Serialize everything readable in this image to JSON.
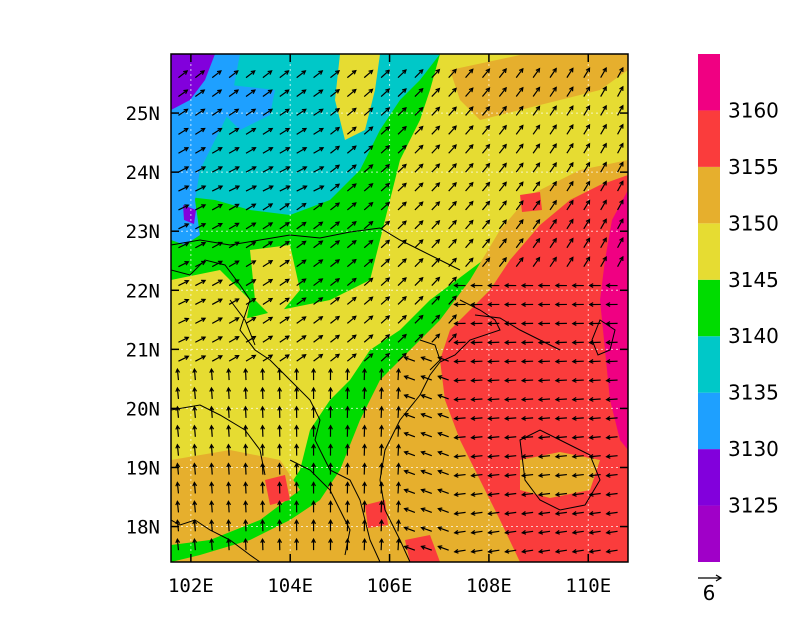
{
  "map": {
    "lon_range": [
      101.6,
      110.8
    ],
    "lat_range": [
      17.4,
      26.0
    ],
    "x_ticks": [
      {
        "value": 102,
        "label": "102E"
      },
      {
        "value": 104,
        "label": "104E"
      },
      {
        "value": 106,
        "label": "106E"
      },
      {
        "value": 108,
        "label": "108E"
      },
      {
        "value": 110,
        "label": "110E"
      }
    ],
    "y_ticks": [
      {
        "value": 18,
        "label": "18N"
      },
      {
        "value": 19,
        "label": "19N"
      },
      {
        "value": 20,
        "label": "20N"
      },
      {
        "value": 21,
        "label": "21N"
      },
      {
        "value": 22,
        "label": "22N"
      },
      {
        "value": 23,
        "label": "23N"
      },
      {
        "value": 24,
        "label": "24N"
      },
      {
        "value": 25,
        "label": "25N"
      }
    ],
    "grid_lines": true
  },
  "colorbar": {
    "levels": [
      3125,
      3130,
      3135,
      3140,
      3145,
      3150,
      3155,
      3160
    ],
    "labels": [
      "3125",
      "3130",
      "3135",
      "3140",
      "3145",
      "3150",
      "3155",
      "3160"
    ],
    "colors": [
      "#a000c8",
      "#8200dc",
      "#1ea0ff",
      "#00c8c8",
      "#00dc00",
      "#e6dc32",
      "#e6af2d",
      "#fa3c3c",
      "#f00082"
    ]
  },
  "reference_vector": {
    "label": "6"
  }
}
